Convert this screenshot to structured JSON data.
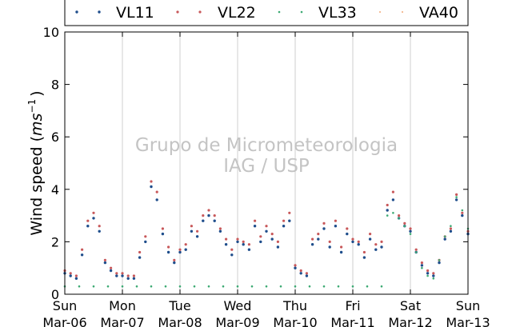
{
  "chart_data": {
    "type": "scatter",
    "ylabel_text": "Wind speed (",
    "ylabel_unit_base": "ms",
    "ylabel_unit_exp": "−1",
    "ylabel_close": ")",
    "ylim": [
      0,
      10
    ],
    "yticks": [
      "0",
      "2",
      "4",
      "6",
      "8",
      "10"
    ],
    "xlim": [
      0,
      7
    ],
    "xticks": [
      {
        "x": 0,
        "line1": "Sun",
        "line2": "Mar-06"
      },
      {
        "x": 1,
        "line1": "Mon",
        "line2": "Mar-07"
      },
      {
        "x": 2,
        "line1": "Tue",
        "line2": "Mar-08"
      },
      {
        "x": 3,
        "line1": "Wed",
        "line2": "Mar-09"
      },
      {
        "x": 4,
        "line1": "Thu",
        "line2": "Mar-10"
      },
      {
        "x": 5,
        "line1": "Fri",
        "line2": "Mar-11"
      },
      {
        "x": 6,
        "line1": "Sat",
        "line2": "Mar-12"
      },
      {
        "x": 7,
        "line1": "Sun",
        "line2": "Mar-13"
      }
    ],
    "grid": "vertical",
    "legend_position": "top",
    "watermark": [
      "Grupo de Micrometeorologia",
      "IAG / USP"
    ],
    "series": [
      {
        "name": "VL11",
        "color": "#1f4e8c",
        "x": [
          0.0,
          0.1,
          0.2,
          0.3,
          0.4,
          0.5,
          0.6,
          0.7,
          0.8,
          0.9,
          1.0,
          1.1,
          1.2,
          1.3,
          1.4,
          1.5,
          1.6,
          1.7,
          1.8,
          1.9,
          2.0,
          2.1,
          2.2,
          2.3,
          2.4,
          2.5,
          2.6,
          2.7,
          2.8,
          2.9,
          3.0,
          3.1,
          3.2,
          3.3,
          3.4,
          3.5,
          3.6,
          3.7,
          3.8,
          3.9,
          4.0,
          4.1,
          4.2,
          4.3,
          4.4,
          4.5,
          4.6,
          4.7,
          4.8,
          4.9,
          5.0,
          5.1,
          5.2,
          5.3,
          5.4,
          5.5,
          5.6,
          5.7,
          5.8,
          5.9,
          6.0,
          6.1,
          6.2,
          6.3,
          6.4,
          6.5,
          6.6,
          6.7,
          6.8,
          6.9,
          7.0
        ],
        "y": [
          0.8,
          0.7,
          0.6,
          1.5,
          2.6,
          2.9,
          2.4,
          1.2,
          0.9,
          0.7,
          0.7,
          0.6,
          0.6,
          1.4,
          2.0,
          4.1,
          3.6,
          2.3,
          1.6,
          1.2,
          1.6,
          1.7,
          2.4,
          2.2,
          2.8,
          3.0,
          2.8,
          2.4,
          1.9,
          1.5,
          2.0,
          1.9,
          1.7,
          2.6,
          2.0,
          2.4,
          2.1,
          1.8,
          2.6,
          2.8,
          1.0,
          0.8,
          0.7,
          1.9,
          2.1,
          2.5,
          1.8,
          2.6,
          1.6,
          2.3,
          2.0,
          1.9,
          1.4,
          2.1,
          1.7,
          1.8,
          3.2,
          3.6,
          2.9,
          2.6,
          2.4,
          1.6,
          1.1,
          0.8,
          0.7,
          1.2,
          2.1,
          2.4,
          3.6,
          3.0,
          2.3
        ]
      },
      {
        "name": "VL22",
        "color": "#c8585a",
        "x": [
          0.0,
          0.1,
          0.2,
          0.3,
          0.4,
          0.5,
          0.6,
          0.7,
          0.8,
          0.9,
          1.0,
          1.1,
          1.2,
          1.3,
          1.4,
          1.5,
          1.6,
          1.7,
          1.8,
          1.9,
          2.0,
          2.1,
          2.2,
          2.3,
          2.4,
          2.5,
          2.6,
          2.7,
          2.8,
          2.9,
          3.0,
          3.1,
          3.2,
          3.3,
          3.4,
          3.5,
          3.6,
          3.7,
          3.8,
          3.9,
          4.0,
          4.1,
          4.2,
          4.3,
          4.4,
          4.5,
          4.6,
          4.7,
          4.8,
          4.9,
          5.0,
          5.1,
          5.2,
          5.3,
          5.4,
          5.5,
          5.6,
          5.7,
          5.8,
          5.9,
          6.0,
          6.1,
          6.2,
          6.3,
          6.4,
          6.5,
          6.6,
          6.7,
          6.8,
          6.9,
          7.0
        ],
        "y": [
          0.9,
          0.8,
          0.7,
          1.7,
          2.8,
          3.1,
          2.6,
          1.3,
          1.0,
          0.8,
          0.8,
          0.7,
          0.7,
          1.6,
          2.2,
          4.3,
          3.9,
          2.5,
          1.8,
          1.3,
          1.7,
          1.9,
          2.6,
          2.4,
          3.0,
          3.2,
          3.0,
          2.5,
          2.1,
          1.7,
          2.1,
          2.0,
          1.9,
          2.8,
          2.2,
          2.6,
          2.3,
          2.0,
          2.8,
          3.1,
          1.1,
          0.9,
          0.8,
          2.1,
          2.3,
          2.7,
          2.0,
          2.8,
          1.8,
          2.5,
          2.1,
          2.0,
          1.6,
          2.3,
          1.9,
          2.0,
          3.4,
          3.9,
          3.0,
          2.7,
          2.5,
          1.7,
          1.2,
          0.9,
          0.8,
          1.3,
          2.2,
          2.5,
          3.8,
          3.1,
          2.4
        ]
      },
      {
        "name": "VL33",
        "color": "#3daa74",
        "x": [
          0.0,
          0.25,
          0.5,
          0.75,
          1.0,
          1.25,
          1.5,
          1.75,
          2.0,
          2.25,
          2.5,
          2.75,
          3.0,
          3.25,
          3.5,
          3.75,
          4.0,
          4.25,
          4.5,
          4.75,
          5.0,
          5.25,
          5.5,
          5.6,
          5.7,
          5.8,
          5.9,
          6.0,
          6.1,
          6.2,
          6.3,
          6.4,
          6.5,
          6.6,
          6.7,
          6.8,
          6.9,
          7.0
        ],
        "y": [
          0.3,
          0.3,
          0.3,
          0.3,
          0.3,
          0.3,
          0.3,
          0.3,
          0.3,
          0.3,
          0.3,
          0.3,
          0.3,
          0.3,
          0.3,
          0.3,
          0.3,
          0.3,
          0.3,
          0.3,
          0.3,
          0.3,
          0.3,
          3.0,
          3.1,
          2.9,
          2.6,
          2.3,
          1.6,
          1.0,
          0.7,
          0.6,
          1.3,
          2.2,
          2.6,
          3.7,
          3.2,
          2.5
        ]
      },
      {
        "name": "VA40",
        "color": "#f0a878",
        "x": [],
        "y": []
      }
    ]
  }
}
